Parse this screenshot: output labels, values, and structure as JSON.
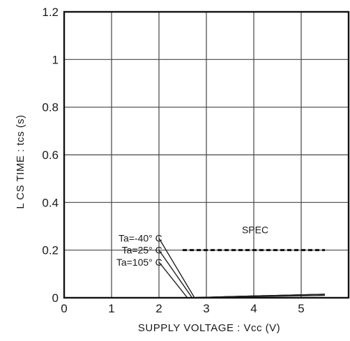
{
  "chart_data": {
    "type": "line",
    "xlabel": "SUPPLY  VOLTAGE : Vcc (V)",
    "ylabel": "L  CS  TIME : tcs (s)",
    "xlim": [
      0,
      6
    ],
    "ylim": [
      0,
      1.2
    ],
    "x_ticks": [
      "0",
      "1",
      "2",
      "3",
      "4",
      "5"
    ],
    "x_tick_values": [
      0,
      1,
      2,
      3,
      4,
      5
    ],
    "y_ticks": [
      "0",
      "0.2",
      "0.4",
      "0.6",
      "0.8",
      "1",
      "1.2"
    ],
    "y_tick_values": [
      0,
      0.2,
      0.4,
      0.6,
      0.8,
      1.0,
      1.2
    ],
    "grid": true,
    "series": [
      {
        "name": "Ta=-40° C",
        "x": [
          2.0,
          2.75,
          3.5,
          5.5
        ],
        "y": [
          0.25,
          0.0,
          0.005,
          0.015
        ]
      },
      {
        "name": "Ta=25° C",
        "x": [
          2.0,
          2.7,
          3.5,
          5.5
        ],
        "y": [
          0.2,
          0.0,
          0.005,
          0.015
        ]
      },
      {
        "name": "Ta=105° C",
        "x": [
          2.0,
          2.6,
          3.5,
          5.5
        ],
        "y": [
          0.15,
          0.0,
          0.005,
          0.015
        ]
      }
    ],
    "base_curve": {
      "x": [
        2.5,
        5.5
      ],
      "y": [
        0.0,
        0.01
      ]
    },
    "spec": {
      "label": "SPEC",
      "x": [
        2.5,
        5.5
      ],
      "y": 0.2
    }
  }
}
